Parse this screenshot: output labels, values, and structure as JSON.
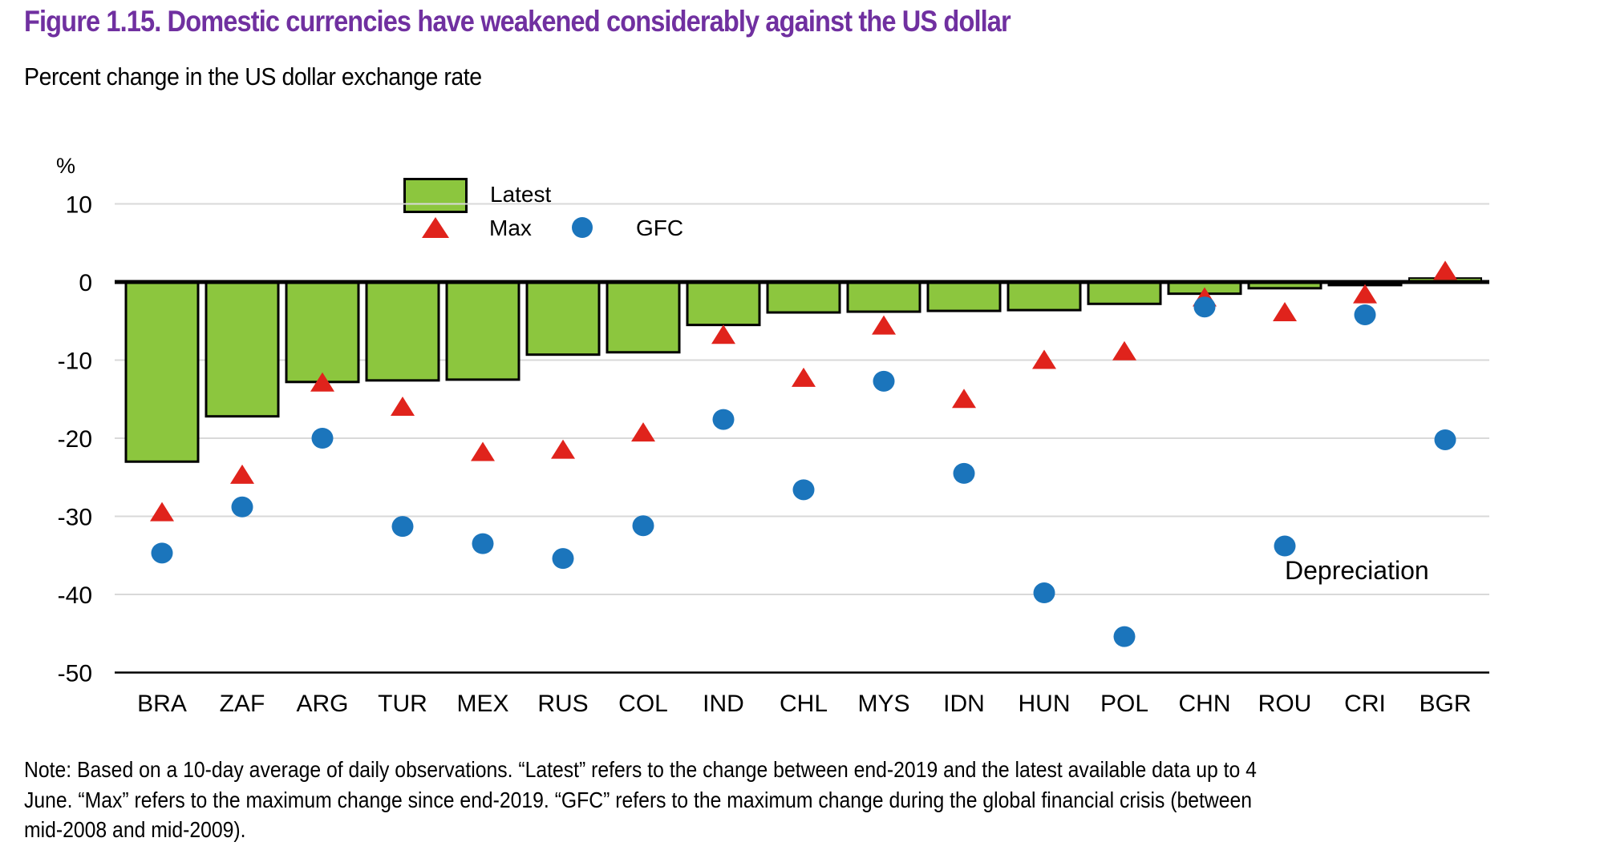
{
  "figure": {
    "title": "Figure 1.15. Domestic currencies have weakened considerably against the US dollar",
    "title_color": "#7030a0",
    "subtitle": "Percent change in the US dollar exchange rate",
    "note_lines": [
      "Note: Based on a 10-day average of daily observations. “Latest” refers to the change between end-2019 and the latest available data up to 4",
      "June. “Max” refers to the maximum change since end-2019. “GFC” refers to the maximum change during the global financial crisis (between",
      "mid-2008 and mid-2009)."
    ]
  },
  "chart_data": {
    "type": "bar",
    "title": "Figure 1.15. Domestic currencies have weakened considerably against the US dollar",
    "subtitle": "Percent change in the US dollar exchange rate",
    "unit_label": "%",
    "categories": [
      "BRA",
      "ZAF",
      "ARG",
      "TUR",
      "MEX",
      "RUS",
      "COL",
      "IND",
      "CHL",
      "MYS",
      "IDN",
      "HUN",
      "POL",
      "CHN",
      "ROU",
      "CRI",
      "BGR"
    ],
    "series": [
      {
        "name": "Latest",
        "style": "bar",
        "color": "#8cc63e",
        "values": [
          -23.0,
          -17.2,
          -12.8,
          -12.6,
          -12.5,
          -9.3,
          -9.0,
          -5.5,
          -3.9,
          -3.8,
          -3.7,
          -3.6,
          -2.8,
          -1.5,
          -0.8,
          -0.4,
          0.5
        ]
      },
      {
        "name": "Max",
        "style": "triangle",
        "color": "#e0231c",
        "values": [
          -29.5,
          -24.7,
          -12.9,
          -16.0,
          -21.8,
          -21.5,
          -19.3,
          -6.8,
          -12.3,
          -5.6,
          -15.0,
          -10.0,
          -8.9,
          -2.0,
          -3.9,
          -1.6,
          1.4
        ]
      },
      {
        "name": "GFC",
        "style": "circle",
        "color": "#1b75bc",
        "values": [
          -34.7,
          -28.8,
          -20.0,
          -31.3,
          -33.5,
          -35.4,
          -31.2,
          -17.6,
          -26.6,
          -12.7,
          -24.5,
          -39.8,
          -45.4,
          -3.2,
          -33.8,
          -4.2,
          -20.2
        ]
      }
    ],
    "y_ticks": [
      10,
      0,
      -10,
      -20,
      -30,
      -40,
      -50
    ],
    "ylim": [
      -50,
      10
    ],
    "grid": true,
    "legend_position": "top-left-inside",
    "annotation": "Depreciation",
    "grid_color": "#d9d9d9"
  }
}
